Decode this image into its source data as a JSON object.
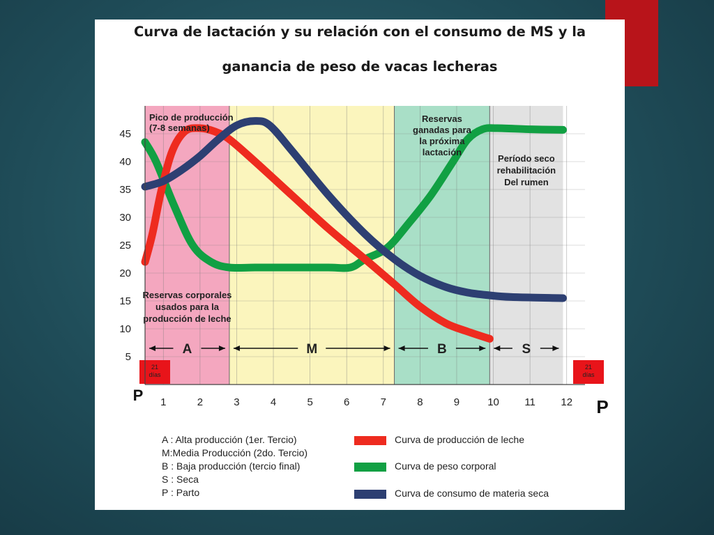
{
  "slide": {
    "title_line1": "Curva de lactación y su relación con el consumo de MS y la",
    "title_line2": "ganancia de peso de vacas lecheras",
    "accent_color": "#b8141a"
  },
  "chart_data": {
    "type": "line",
    "x_ticks": [
      "1",
      "2",
      "3",
      "4",
      "5",
      "6",
      "7",
      "8",
      "9",
      "10",
      "11",
      "12"
    ],
    "y_ticks": [
      5,
      10,
      15,
      20,
      25,
      30,
      35,
      40,
      45
    ],
    "xlim": [
      0,
      12
    ],
    "ylim": [
      0,
      50
    ],
    "grid": true,
    "axis_end_labels": {
      "left": "P",
      "right": "P"
    },
    "regions": [
      {
        "id": "A",
        "label": "A",
        "x": [
          0,
          2.3
        ],
        "color": "#f4a7bf"
      },
      {
        "id": "M",
        "label": "M",
        "x": [
          2.3,
          6.8
        ],
        "color": "#fbf5bd"
      },
      {
        "id": "B",
        "label": "B",
        "x": [
          6.8,
          9.4
        ],
        "color": "#a9dfc7"
      },
      {
        "id": "S",
        "label": "S",
        "x": [
          9.4,
          11.4
        ],
        "color": "#e2e2e2"
      }
    ],
    "annotations": [
      {
        "id": "peak",
        "lines": [
          "Pico de producción",
          "(7-8 semanas)"
        ]
      },
      {
        "id": "reserves-used",
        "lines": [
          "Reservas corporales",
          "usados para la",
          "producción de leche"
        ]
      },
      {
        "id": "reserves-gained",
        "lines": [
          "Reservas",
          "ganadas para",
          "la próxima",
          "lactación"
        ]
      },
      {
        "id": "dry-period",
        "lines": [
          "Período seco",
          "rehabilitación",
          "Del rumen"
        ]
      }
    ],
    "badges": [
      {
        "id": "start",
        "lines": [
          "21",
          "días"
        ]
      },
      {
        "id": "end",
        "lines": [
          "21",
          "días"
        ]
      }
    ],
    "series": [
      {
        "id": "milk",
        "name": "Curva de producción de leche",
        "color": "#ee2b1f",
        "points": [
          [
            0,
            22
          ],
          [
            0.2,
            27
          ],
          [
            0.45,
            35
          ],
          [
            0.75,
            42
          ],
          [
            1.1,
            45.5
          ],
          [
            1.5,
            46
          ],
          [
            1.9,
            45.4
          ],
          [
            2.3,
            44
          ],
          [
            3.0,
            40
          ],
          [
            4.0,
            34
          ],
          [
            5.0,
            28
          ],
          [
            6.0,
            22.5
          ],
          [
            6.8,
            18
          ],
          [
            7.5,
            14
          ],
          [
            8.2,
            11
          ],
          [
            8.8,
            9.5
          ],
          [
            9.4,
            8.2
          ]
        ]
      },
      {
        "id": "weight",
        "name": "Curva de peso corporal",
        "color": "#11a043",
        "points": [
          [
            0,
            43.5
          ],
          [
            0.3,
            40
          ],
          [
            0.8,
            32
          ],
          [
            1.3,
            25
          ],
          [
            1.8,
            22
          ],
          [
            2.3,
            21
          ],
          [
            3.0,
            21
          ],
          [
            4.0,
            21
          ],
          [
            5.0,
            21
          ],
          [
            5.6,
            21
          ],
          [
            6.0,
            22.5
          ],
          [
            6.6,
            24.5
          ],
          [
            7.2,
            29
          ],
          [
            7.8,
            34
          ],
          [
            8.4,
            40
          ],
          [
            8.8,
            44
          ],
          [
            9.2,
            45.8
          ],
          [
            9.6,
            46
          ],
          [
            10.5,
            45.8
          ],
          [
            11.4,
            45.7
          ]
        ]
      },
      {
        "id": "dm-intake",
        "name": "Curva de consumo de materia seca",
        "color": "#2d3f72",
        "points": [
          [
            0,
            35.5
          ],
          [
            0.5,
            36.5
          ],
          [
            1.0,
            38.5
          ],
          [
            1.5,
            41
          ],
          [
            2.0,
            44
          ],
          [
            2.5,
            46.5
          ],
          [
            3.0,
            47.3
          ],
          [
            3.4,
            46.5
          ],
          [
            4.0,
            42
          ],
          [
            5.0,
            34
          ],
          [
            6.0,
            27
          ],
          [
            6.8,
            22.5
          ],
          [
            7.5,
            19.5
          ],
          [
            8.2,
            17.5
          ],
          [
            8.8,
            16.5
          ],
          [
            9.4,
            16
          ],
          [
            10.0,
            15.7
          ],
          [
            11.4,
            15.5
          ]
        ]
      }
    ]
  },
  "legend": {
    "abbreviations": [
      "A : Alta producción (1er. Tercio)",
      "M:Media Producción (2do. Tercio)",
      "B : Baja producción (tercio final)",
      "S : Seca",
      "P : Parto"
    ],
    "curves": [
      {
        "label": "Curva de producción de leche",
        "color": "#ee2b1f"
      },
      {
        "label": "Curva de peso corporal",
        "color": "#11a043"
      },
      {
        "label": "Curva de consumo de materia seca",
        "color": "#2d3f72"
      }
    ]
  }
}
